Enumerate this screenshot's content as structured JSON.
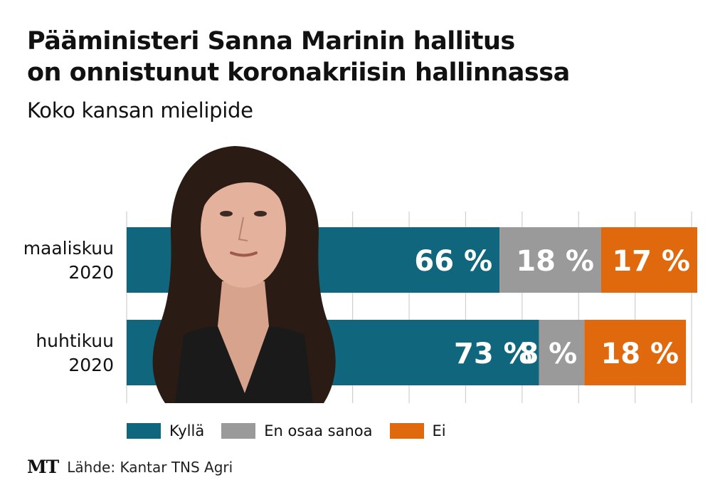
{
  "title_line1": "Pääministeri Sanna Marinin hallitus",
  "title_line2": "on onnistunut koronakriisin hallinnassa",
  "subtitle": "Koko kansan mielipide",
  "legend": [
    {
      "label": "Kyllä",
      "color": "#10667d"
    },
    {
      "label": "En osaa sanoa",
      "color": "#9a9a9a"
    },
    {
      "label": "Ei",
      "color": "#e0690e"
    }
  ],
  "footer": {
    "logo": "MT",
    "source": "Lähde: Kantar TNS Agri"
  },
  "chart_data": {
    "type": "bar",
    "orientation": "horizontal",
    "stacked": true,
    "title": "Pääministeri Sanna Marinin hallitus on onnistunut koronakriisin hallinnassa",
    "subtitle": "Koko kansan mielipide",
    "categories": [
      [
        "maaliskuu",
        "2020"
      ],
      [
        "huhtikuu",
        "2020"
      ]
    ],
    "series": [
      {
        "name": "Kyllä",
        "color": "#10667d",
        "values": [
          66,
          73
        ],
        "labels": [
          "66 %",
          "73 %"
        ]
      },
      {
        "name": "En osaa sanoa",
        "color": "#9a9a9a",
        "values": [
          18,
          8
        ],
        "labels": [
          "18 %",
          "8 %"
        ]
      },
      {
        "name": "Ei",
        "color": "#e0690e",
        "values": [
          17,
          18
        ],
        "labels": [
          "17 %",
          "18 %"
        ]
      }
    ],
    "xlim": [
      0,
      101
    ],
    "grid": true,
    "legend_position": "bottom"
  }
}
